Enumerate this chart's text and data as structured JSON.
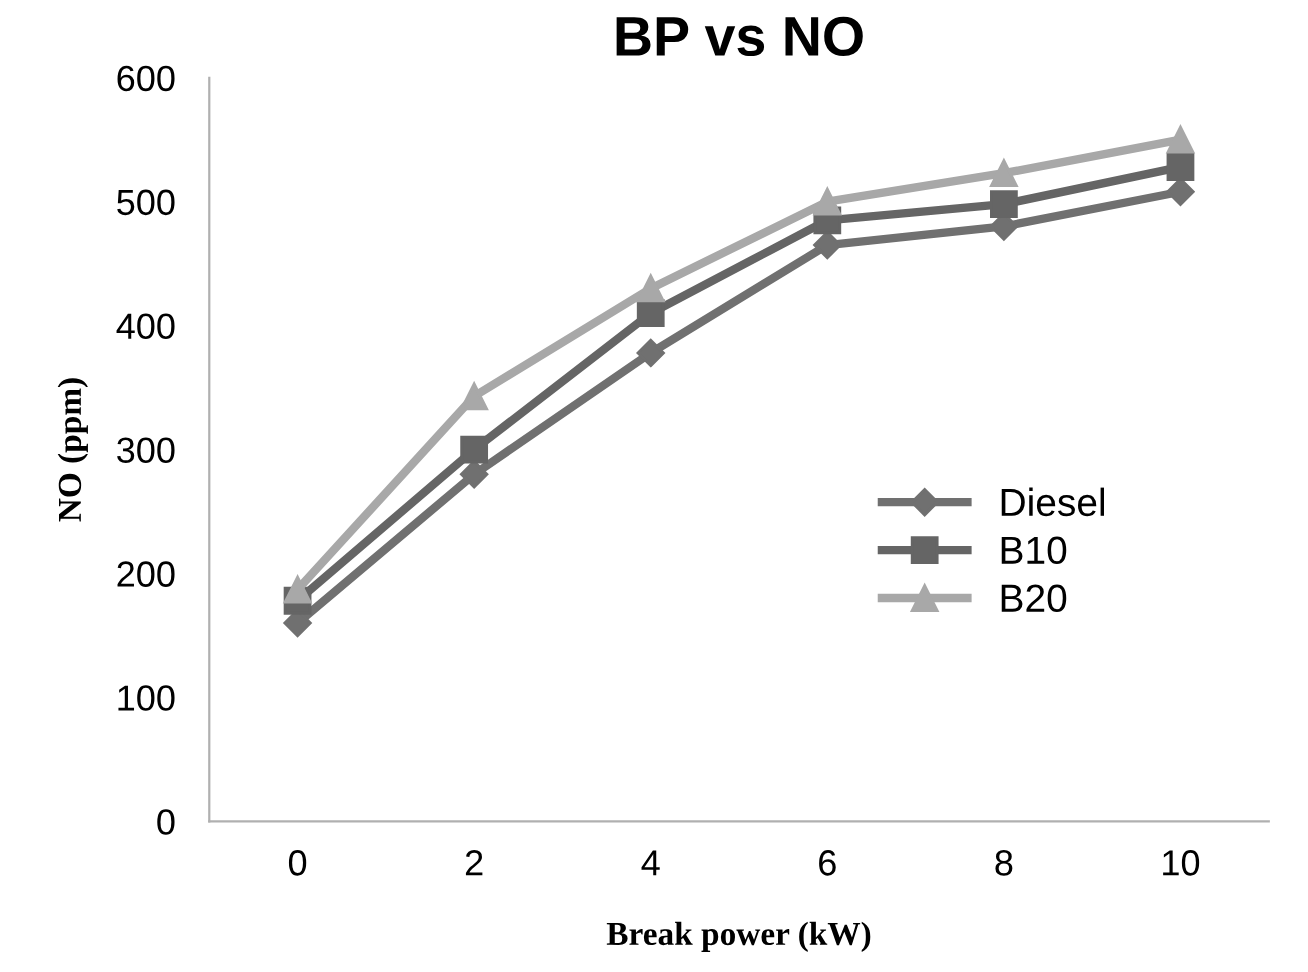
{
  "chart_data": {
    "type": "line",
    "title": "BP vs NO",
    "xlabel": "Break power (kW)",
    "ylabel": "NO (ppm)",
    "categories": [
      "0",
      "2",
      "4",
      "6",
      "8",
      "10"
    ],
    "series": [
      {
        "name": "Diesel",
        "color": "#707070",
        "marker": "diamond",
        "values": [
          160,
          280,
          378,
          465,
          480,
          508
        ]
      },
      {
        "name": "B10",
        "color": "#656565",
        "marker": "square",
        "values": [
          178,
          300,
          410,
          485,
          498,
          528
        ]
      },
      {
        "name": "B20",
        "color": "#a8a8a8",
        "marker": "triangle",
        "values": [
          187,
          343,
          430,
          500,
          523,
          550
        ]
      }
    ],
    "ylim": [
      0,
      600
    ],
    "yticks": [
      0,
      100,
      200,
      300,
      400,
      500,
      600
    ],
    "grid": false,
    "legend": "right",
    "line_style": "solid"
  }
}
